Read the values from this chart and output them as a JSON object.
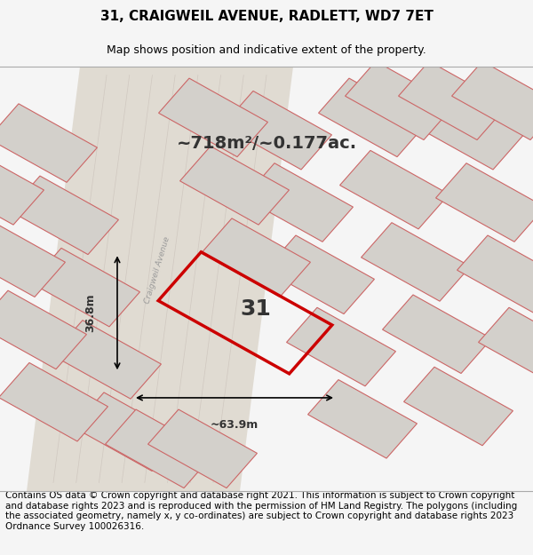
{
  "title": "31, CRAIGWEIL AVENUE, RADLETT, WD7 7ET",
  "subtitle": "Map shows position and indicative extent of the property.",
  "footer": "Contains OS data © Crown copyright and database right 2021. This information is subject to Crown copyright and database rights 2023 and is reproduced with the permission of HM Land Registry. The polygons (including the associated geometry, namely x, y co-ordinates) are subject to Crown copyright and database rights 2023 Ordnance Survey 100026316.",
  "area_text": "~718m²/~0.177ac.",
  "width_label": "~63.9m",
  "height_label": "36.8m",
  "plot_number": "31",
  "bg_color": "#f5f5f5",
  "map_bg": "#f0ede8",
  "plot_outline_color": "#cc0000",
  "neighbor_fill": "#d3d0cb",
  "neighbor_outline": "#cc6666",
  "road_color": "#e8e0d8",
  "title_fontsize": 11,
  "subtitle_fontsize": 9,
  "footer_fontsize": 7.5
}
